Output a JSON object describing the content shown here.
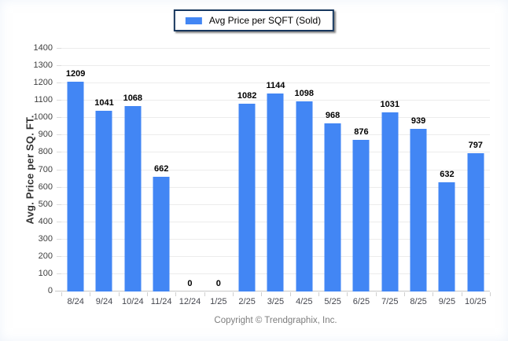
{
  "legend": {
    "label": "Avg Price per SQFT (Sold)",
    "swatch_color": "#4286f4"
  },
  "y_axis_title": "Avg. Price per SQ. FT.",
  "footer_text": "Copyright © Trendgraphix, Inc.",
  "colors": {
    "bar": "#4286f4",
    "gridline": "#ececec",
    "baseline": "#c9c9c9",
    "tick_text": "#404040",
    "value_text": "#000000",
    "legend_border": "#17375e",
    "footer_text": "#7d7d7d"
  },
  "chart_data": {
    "type": "bar",
    "title": "",
    "xlabel": "",
    "ylabel": "Avg. Price per SQ. FT.",
    "categories": [
      "8/24",
      "9/24",
      "10/24",
      "11/24",
      "12/24",
      "1/25",
      "2/25",
      "3/25",
      "4/25",
      "5/25",
      "6/25",
      "7/25",
      "8/25",
      "9/25",
      "10/25"
    ],
    "values": [
      1209,
      1041,
      1068,
      662,
      0,
      0,
      1082,
      1144,
      1098,
      968,
      876,
      1031,
      939,
      632,
      797
    ],
    "series_name": "Avg Price per SQFT (Sold)",
    "ylim": [
      0,
      1400
    ],
    "ytick_step": 100,
    "grid": true,
    "legend_position": "top-center",
    "value_labels_shown": true
  }
}
